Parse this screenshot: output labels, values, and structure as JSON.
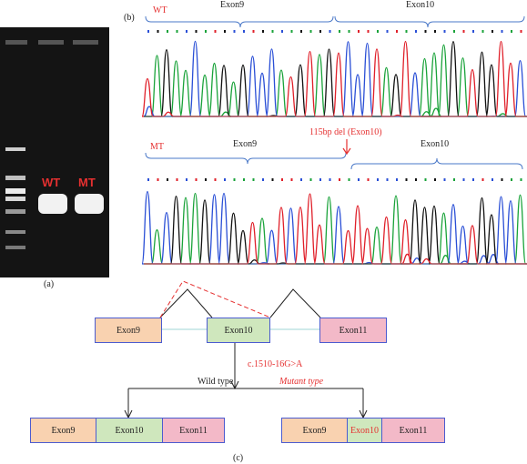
{
  "panel_a": {
    "label": "(a)",
    "lane_labels": [
      "WT",
      "MT"
    ],
    "colors": {
      "gel_bg": "#141414",
      "band": "#f2f2f2",
      "lane_label": "#e53030"
    }
  },
  "panel_b": {
    "label": "(b)",
    "wt": {
      "sample_label": "WT",
      "exon_left": "Exon9",
      "exon_right": "Exon10"
    },
    "mt": {
      "sample_label": "MT",
      "exon_left": "Exon9",
      "exon_right": "Exon10",
      "deletion_annotation": "115bp del (Exon10)"
    },
    "trace_colors": {
      "A": "#1aa33a",
      "C": "#2a4fd6",
      "G": "#111111",
      "T": "#e0202a"
    }
  },
  "panel_c": {
    "label": "(c)",
    "top_row": [
      "Exon9",
      "Exon10",
      "Exon11"
    ],
    "mutation": "c.1510-16G>A",
    "wild_type_label": "Wild type",
    "mutant_type_label": "Mutant type",
    "wild_row": [
      "Exon9",
      "Exon10",
      "Exon11"
    ],
    "mutant_row": [
      "Exon9",
      "Exon10",
      "Exon11"
    ],
    "colors": {
      "exon9": "#f9d2b0",
      "exon10": "#cfe7bd",
      "exon11": "#f3b9c8",
      "border": "#4b5bd0",
      "accent": "#e53030"
    }
  }
}
